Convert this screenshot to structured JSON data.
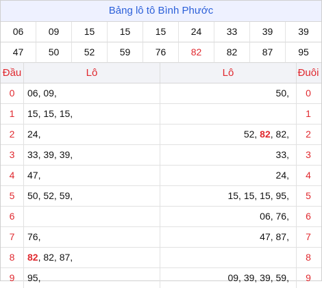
{
  "title": "Bảng lô tô Bình Phước",
  "numbers_row1": [
    "06",
    "09",
    "15",
    "15",
    "15",
    "24",
    "33",
    "39",
    "39"
  ],
  "numbers_row2": [
    "47",
    "50",
    "52",
    "59",
    "76",
    "82",
    "82",
    "87",
    "95"
  ],
  "highlighted_number": "82",
  "header": {
    "dau": "Đầu",
    "lo_left": "Lô",
    "lo_right": "Lô",
    "duoi": "Đuôi"
  },
  "rows": [
    {
      "dau": "0",
      "left": "06, 09,",
      "right": "50,",
      "duoi": "0"
    },
    {
      "dau": "1",
      "left": "15, 15, 15,",
      "right": "",
      "duoi": "1"
    },
    {
      "dau": "2",
      "left": "24,",
      "right_parts": [
        "52, ",
        "82",
        ", 82,"
      ],
      "duoi": "2"
    },
    {
      "dau": "3",
      "left": "33, 39, 39,",
      "right": "33,",
      "duoi": "3"
    },
    {
      "dau": "4",
      "left": "47,",
      "right": "24,",
      "duoi": "4"
    },
    {
      "dau": "5",
      "left": "50, 52, 59,",
      "right": "15, 15, 15, 95,",
      "duoi": "5"
    },
    {
      "dau": "6",
      "left": "",
      "right": "06, 76,",
      "duoi": "6"
    },
    {
      "dau": "7",
      "left": "76,",
      "right": "47, 87,",
      "duoi": "7"
    },
    {
      "dau": "8",
      "left_parts": [
        "82",
        ", 82, 87,"
      ],
      "right": "",
      "duoi": "8"
    },
    {
      "dau": "9",
      "left": "95,",
      "right": "09, 39, 39, 59,",
      "duoi": "9"
    }
  ]
}
